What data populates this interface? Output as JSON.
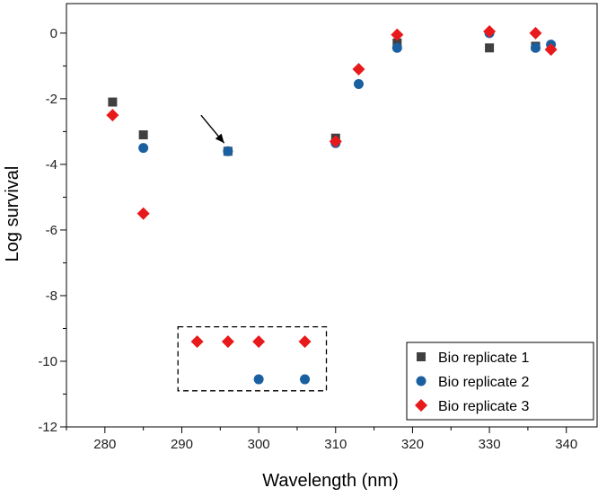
{
  "chart_data": {
    "type": "scatter",
    "xlabel": "Wavelength (nm)",
    "ylabel": "Log survival",
    "xlim": [
      275,
      344
    ],
    "ylim": [
      -12,
      0.9
    ],
    "xticks": [
      280,
      290,
      300,
      310,
      320,
      330,
      340
    ],
    "yticks": [
      0,
      -2,
      -4,
      -6,
      -8,
      -10,
      -12
    ],
    "grid": false,
    "legend_position": "bottom-right",
    "series": [
      {
        "name": "Bio replicate 1",
        "marker": "square",
        "color": "#404040",
        "x": [
          281,
          285,
          296,
          310,
          318,
          330,
          336
        ],
        "y": [
          -2.1,
          -3.1,
          -3.6,
          -3.2,
          -0.3,
          -0.45,
          -0.4
        ]
      },
      {
        "name": "Bio replicate 2",
        "marker": "circle",
        "color": "#1a5fa0",
        "x": [
          285,
          296,
          300,
          306,
          310,
          313,
          318,
          330,
          336,
          338
        ],
        "y": [
          -3.5,
          -3.6,
          -10.55,
          -10.55,
          -3.35,
          -1.55,
          -0.45,
          0.0,
          -0.45,
          -0.35
        ]
      },
      {
        "name": "Bio replicate 3",
        "marker": "diamond",
        "color": "#e8191b",
        "x": [
          281,
          285,
          292,
          296,
          300,
          306,
          310,
          313,
          318,
          330,
          336,
          338
        ],
        "y": [
          -2.5,
          -5.5,
          -9.4,
          -9.4,
          -9.4,
          -9.4,
          -3.3,
          -1.1,
          -0.05,
          0.05,
          0.0,
          -0.5
        ]
      }
    ],
    "annotations": [
      {
        "type": "arrow",
        "from": [
          292.5,
          -2.5
        ],
        "to": [
          295.5,
          -3.35
        ]
      },
      {
        "type": "dashed-box",
        "x": [
          289.5,
          308.8
        ],
        "y": [
          -8.95,
          -10.9
        ]
      }
    ]
  }
}
